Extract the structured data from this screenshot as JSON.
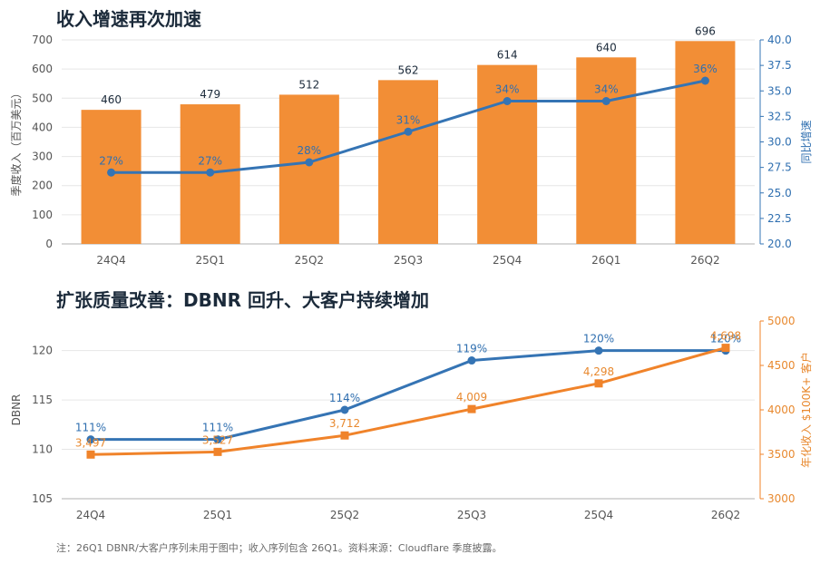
{
  "footnote": "注：26Q1 DBNR/大客户序列未用于图中；收入序列包含 26Q1。资料来源：Cloudflare 季度披露。",
  "colors": {
    "bar": "#f28e36",
    "blue": "#3574b4",
    "orange": "#f0832a",
    "grid": "#e6e6e6",
    "axis": "#b0b0b0"
  },
  "chart_data": [
    {
      "type": "bar",
      "title": "收入增速再次加速",
      "categories": [
        "24Q4",
        "25Q1",
        "25Q2",
        "25Q3",
        "25Q4",
        "26Q1",
        "26Q2"
      ],
      "ylabel": "季度收入（百万美元）",
      "ylim": [
        0,
        700
      ],
      "yticks": [
        0,
        100,
        200,
        300,
        400,
        500,
        600,
        700
      ],
      "y2label": "同比增速",
      "y2lim": [
        20.0,
        40.0
      ],
      "y2ticks": [
        "20.0",
        "22.5",
        "25.0",
        "27.5",
        "30.0",
        "32.5",
        "35.0",
        "37.5",
        "40.0"
      ],
      "grid": true,
      "series": [
        {
          "values": [
            460,
            479,
            512,
            562,
            614,
            640,
            696
          ],
          "labels": [
            "460",
            "479",
            "512",
            "562",
            "614",
            "640",
            "696"
          ]
        },
        {
          "type": "line",
          "axis": "right",
          "values": [
            27,
            27,
            28,
            31,
            34,
            34,
            36
          ],
          "labels": [
            "27%",
            "27%",
            "28%",
            "31%",
            "34%",
            "34%",
            "36%"
          ]
        }
      ]
    },
    {
      "type": "line",
      "title": "扩张质量改善：DBNR 回升、大客户持续增加",
      "categories": [
        "24Q4",
        "25Q1",
        "25Q2",
        "25Q3",
        "25Q4",
        "26Q2"
      ],
      "ylabel": "DBNR",
      "ylim": [
        105,
        123
      ],
      "yticks": [
        105,
        110,
        115,
        120
      ],
      "y2label": "年化收入 $100K+ 客户",
      "y2lim": [
        3000,
        5000
      ],
      "y2ticks": [
        "3000",
        "3500",
        "4000",
        "4500",
        "5000"
      ],
      "grid": true,
      "series": [
        {
          "axis": "left",
          "values": [
            111,
            111,
            114,
            119,
            120,
            120
          ],
          "labels": [
            "111%",
            "111%",
            "114%",
            "119%",
            "120%",
            "120%"
          ]
        },
        {
          "axis": "right",
          "values": [
            3497,
            3527,
            3712,
            4009,
            4298,
            4698
          ],
          "labels": [
            "3,497",
            "3,527",
            "3,712",
            "4,009",
            "4,298",
            "4,698"
          ]
        }
      ]
    }
  ]
}
